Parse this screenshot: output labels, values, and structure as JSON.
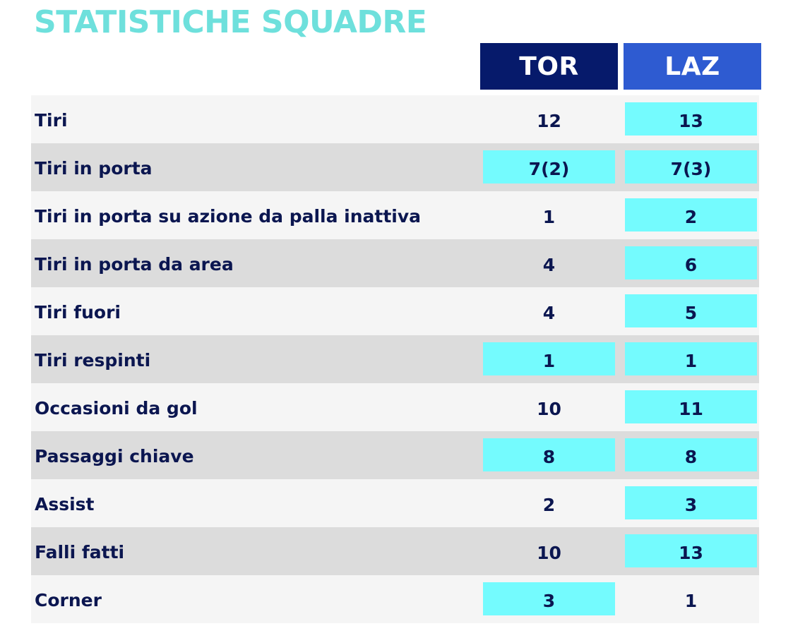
{
  "title": "STATISTICHE SQUADRE",
  "teams": {
    "home": "TOR",
    "away": "LAZ"
  },
  "colors": {
    "title": "#6ee0dc",
    "home_header": "#061a6b",
    "away_header": "#2e5bd1",
    "highlight": "#74fbfe",
    "text": "#0b1650"
  },
  "rows": [
    {
      "label": "Tiri",
      "home": "12",
      "away": "13",
      "home_hl": false,
      "away_hl": true
    },
    {
      "label": "Tiri in porta",
      "home": "7(2)",
      "away": "7(3)",
      "home_hl": true,
      "away_hl": true
    },
    {
      "label": "Tiri in porta su azione da palla inattiva",
      "home": "1",
      "away": "2",
      "home_hl": false,
      "away_hl": true
    },
    {
      "label": "Tiri in porta da area",
      "home": "4",
      "away": "6",
      "home_hl": false,
      "away_hl": true
    },
    {
      "label": "Tiri fuori",
      "home": "4",
      "away": "5",
      "home_hl": false,
      "away_hl": true
    },
    {
      "label": "Tiri respinti",
      "home": "1",
      "away": "1",
      "home_hl": true,
      "away_hl": true
    },
    {
      "label": "Occasioni da gol",
      "home": "10",
      "away": "11",
      "home_hl": false,
      "away_hl": true
    },
    {
      "label": "Passaggi chiave",
      "home": "8",
      "away": "8",
      "home_hl": true,
      "away_hl": true
    },
    {
      "label": "Assist",
      "home": "2",
      "away": "3",
      "home_hl": false,
      "away_hl": true
    },
    {
      "label": "Falli fatti",
      "home": "10",
      "away": "13",
      "home_hl": false,
      "away_hl": true
    },
    {
      "label": "Corner",
      "home": "3",
      "away": "1",
      "home_hl": true,
      "away_hl": false
    }
  ]
}
